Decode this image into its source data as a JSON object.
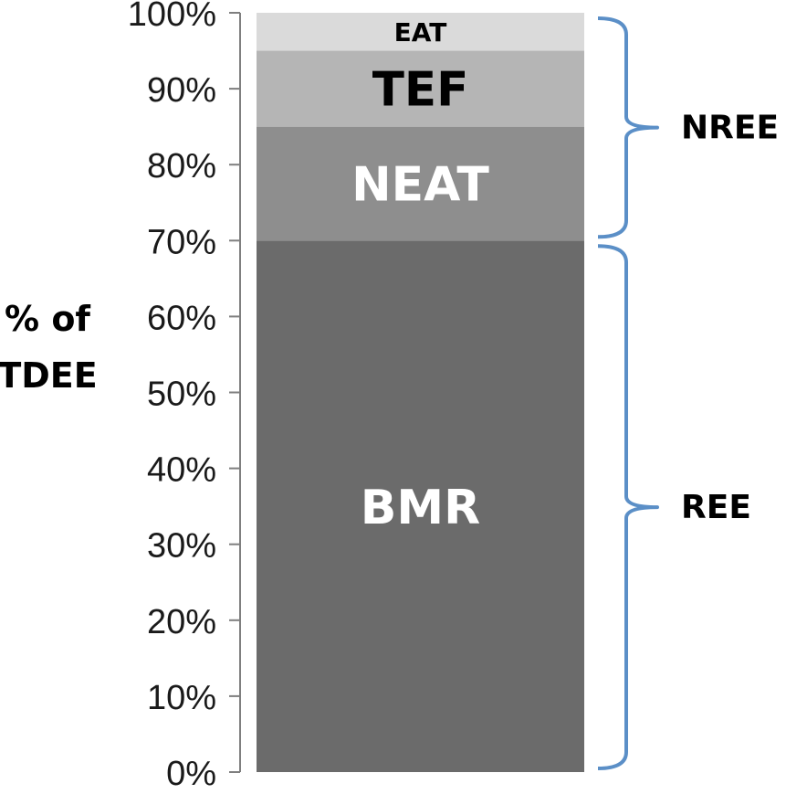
{
  "chart_data": {
    "type": "bar",
    "stacked": true,
    "categories": [
      ""
    ],
    "series": [
      {
        "name": "BMR",
        "values": [
          70
        ],
        "color": "#6b6b6b",
        "label_color": "#ffffff"
      },
      {
        "name": "NEAT",
        "values": [
          15
        ],
        "color": "#8e8e8e",
        "label_color": "#ffffff"
      },
      {
        "name": "TEF",
        "values": [
          10
        ],
        "color": "#b5b5b5",
        "label_color": "#000000"
      },
      {
        "name": "EAT",
        "values": [
          5
        ],
        "color": "#dadada",
        "label_color": "#000000"
      }
    ],
    "ylabel_lines": [
      "% of",
      "TDEE"
    ],
    "ylim": [
      0,
      100
    ],
    "yticks": [
      "0%",
      "10%",
      "20%",
      "30%",
      "40%",
      "50%",
      "60%",
      "70%",
      "80%",
      "90%",
      "100%"
    ],
    "grid": false,
    "legend": false,
    "brackets": [
      {
        "label": "REE",
        "from": 0,
        "to": 70,
        "color": "#5b8fc7"
      },
      {
        "label": "NREE",
        "from": 70,
        "to": 100,
        "color": "#5b8fc7"
      }
    ]
  }
}
